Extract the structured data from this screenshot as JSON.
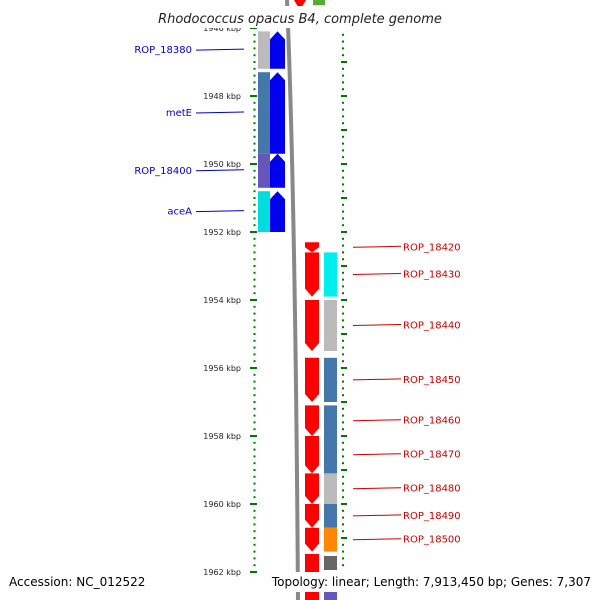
{
  "title": "Rhodococcus opacus B4, complete genome",
  "footer": {
    "accession": "Accession: NC_012522",
    "summary": "Topology: linear; Length: 7,913,450 bp; Genes: 7,307"
  },
  "colors": {
    "blue_strand": "#0000ee",
    "red_strand": "#ff0000",
    "blue_label": "#0000cc",
    "red_label": "#cc0000",
    "backbone": "#888888",
    "tick_green": "#007700"
  },
  "ruler": {
    "ticks": [
      {
        "kbp": 1946,
        "label": "1946 kbp"
      },
      {
        "kbp": 1948,
        "label": "1948 kbp"
      },
      {
        "kbp": 1950,
        "label": "1950 kbp"
      },
      {
        "kbp": 1952,
        "label": "1952 kbp"
      },
      {
        "kbp": 1954,
        "label": "1954 kbp"
      },
      {
        "kbp": 1956,
        "label": "1956 kbp"
      },
      {
        "kbp": 1958,
        "label": "1958 kbp"
      },
      {
        "kbp": 1960,
        "label": "1960 kbp"
      },
      {
        "kbp": 1962,
        "label": "1962 kbp"
      }
    ]
  },
  "genes": [
    {
      "name": "ROP_18380",
      "strand": "minus",
      "start": 1946.1,
      "end": 1947.2,
      "func_color": "#bbbbbb"
    },
    {
      "name": "metE",
      "strand": "minus",
      "start": 1947.3,
      "end": 1949.7,
      "func_color": "#4477aa"
    },
    {
      "name": "ROP_18400",
      "strand": "minus",
      "start": 1949.7,
      "end": 1950.7,
      "func_color": "#6655bb"
    },
    {
      "name": "aceA",
      "strand": "minus",
      "start": 1950.8,
      "end": 1952.0,
      "func_color": "#00dddd"
    },
    {
      "name": "ROP_18420",
      "strand": "plus",
      "start": 1952.3,
      "end": 1952.6,
      "func_color": ""
    },
    {
      "name": "ROP_18430",
      "strand": "plus",
      "start": 1952.6,
      "end": 1953.9,
      "func_color": "#00eeee"
    },
    {
      "name": "ROP_18440",
      "strand": "plus",
      "start": 1954.0,
      "end": 1955.5,
      "func_color": "#bbbbbb"
    },
    {
      "name": "ROP_18450",
      "strand": "plus",
      "start": 1955.7,
      "end": 1957.0,
      "func_color": "#4477aa"
    },
    {
      "name": "ROP_18460",
      "strand": "plus",
      "start": 1957.1,
      "end": 1958.0,
      "func_color": "#4477aa"
    },
    {
      "name": "ROP_18470",
      "strand": "plus",
      "start": 1958.0,
      "end": 1959.1,
      "func_color": "#4477aa"
    },
    {
      "name": "ROP_18480",
      "strand": "plus",
      "start": 1959.1,
      "end": 1960.0,
      "func_color": "#bbbbbb"
    },
    {
      "name": "ROP_18490",
      "strand": "plus",
      "start": 1960.0,
      "end": 1960.7,
      "func_color": "#4477aa"
    },
    {
      "name": "ROP_18500",
      "strand": "plus",
      "start": 1960.7,
      "end": 1961.4,
      "func_color": "#ff8800"
    }
  ]
}
